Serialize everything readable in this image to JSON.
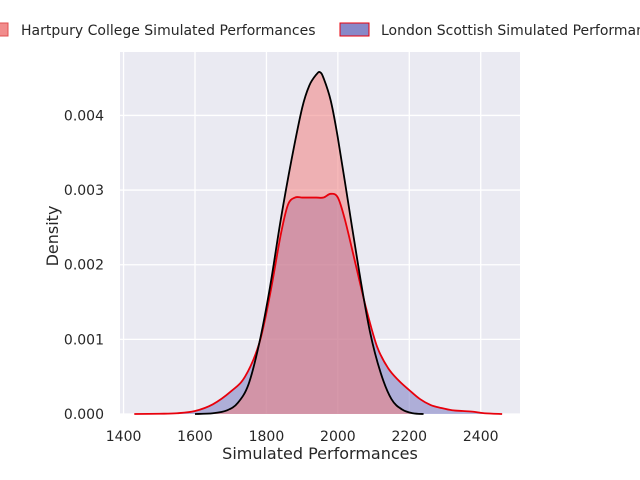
{
  "chart_data": {
    "type": "area",
    "subtype": "kde",
    "title": "",
    "xlabel": "Simulated Performances",
    "ylabel": "Density",
    "xlim": [
      1390,
      2510
    ],
    "ylim": [
      0,
      0.00485
    ],
    "xticks": [
      1400,
      1600,
      1800,
      2000,
      2200,
      2400
    ],
    "xtick_labels": [
      "1400",
      "1600",
      "1800",
      "2000",
      "2200",
      "2400"
    ],
    "yticks": [
      0,
      0.001,
      0.002,
      0.003,
      0.004
    ],
    "ytick_labels": [
      "0.000",
      "0.001",
      "0.002",
      "0.003",
      "0.004"
    ],
    "grid": true,
    "legend_position": "top",
    "series": [
      {
        "name": "Hartpury College Simulated Performances",
        "fill": "#f08080",
        "line": "#000000",
        "x": [
          1600,
          1650,
          1690,
          1720,
          1750,
          1780,
          1810,
          1840,
          1870,
          1900,
          1920,
          1940,
          1950,
          1960,
          1980,
          2000,
          2030,
          2060,
          2090,
          2120,
          2150,
          2180,
          2210,
          2240
        ],
        "y": [
          0,
          1e-05,
          5e-05,
          0.00015,
          0.0004,
          0.00095,
          0.0017,
          0.0026,
          0.0034,
          0.0041,
          0.0044,
          0.00455,
          0.00458,
          0.0045,
          0.0042,
          0.0037,
          0.0028,
          0.0019,
          0.0011,
          0.00055,
          0.0002,
          6e-05,
          1e-05,
          0
        ]
      },
      {
        "name": "London Scottish Simulated Performances",
        "fill": "#7b7bc2",
        "line": "#e8000b",
        "x": [
          1430,
          1500,
          1550,
          1600,
          1650,
          1700,
          1740,
          1780,
          1810,
          1840,
          1860,
          1880,
          1900,
          1920,
          1940,
          1960,
          1980,
          2000,
          2020,
          2050,
          2080,
          2110,
          2140,
          2170,
          2200,
          2230,
          2260,
          2290,
          2320,
          2350,
          2380,
          2410,
          2460
        ],
        "y": [
          0,
          3e-06,
          1e-05,
          4e-05,
          0.00013,
          0.0003,
          0.0005,
          0.00095,
          0.0016,
          0.0024,
          0.0028,
          0.0029,
          0.0029,
          0.0029,
          0.0029,
          0.0029,
          0.00295,
          0.0029,
          0.0026,
          0.002,
          0.0014,
          0.0009,
          0.00062,
          0.00045,
          0.00032,
          0.0002,
          0.00012,
          8e-05,
          5e-05,
          4e-05,
          3e-05,
          1e-05,
          0
        ]
      }
    ]
  }
}
